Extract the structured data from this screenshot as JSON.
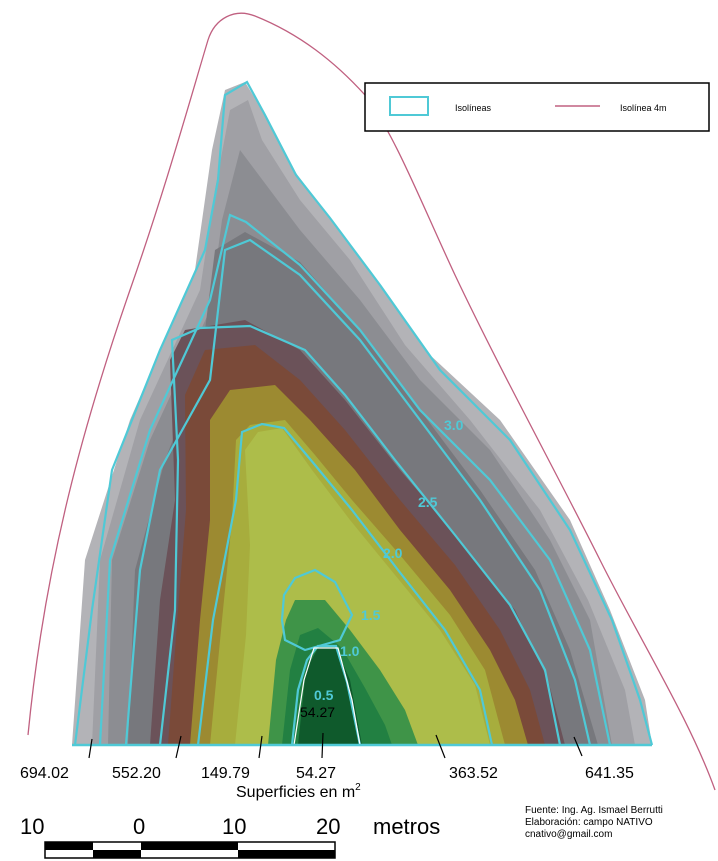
{
  "legend": {
    "polygon_label": "Isolíneas",
    "line_label": "Isolínea 4m",
    "polygon_color": "#4fc9d6",
    "line_color": "#c06080"
  },
  "contours": [
    "0.5",
    "1.0",
    "1.5",
    "2.0",
    "2.5",
    "3.0"
  ],
  "areas": {
    "values": [
      "694.02",
      "552.20",
      "149.79",
      "54.27",
      "363.52",
      "641.35"
    ],
    "inner_value": "54.27",
    "title": "Superficies en m",
    "unit_superscript": "2"
  },
  "scalebar": {
    "ticks": [
      "10",
      "0",
      "10",
      "20"
    ],
    "unit": "metros"
  },
  "credits": {
    "source": "Fuente: Ing. Ag. Ismael Berrutti",
    "elaboration": "Elaboración: campo NATIVO",
    "email": "cnativo@gmail.com"
  },
  "colors": {
    "isoline": "#4fc9d6",
    "outer_boundary": "#c06080"
  }
}
